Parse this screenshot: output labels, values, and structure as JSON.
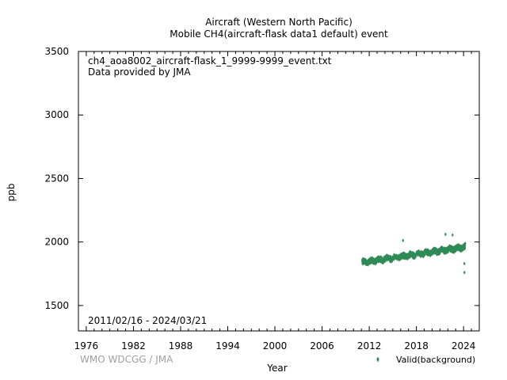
{
  "chart_data": {
    "type": "scatter",
    "title_line1": "Aircraft (Western North Pacific)",
    "title_line2": "Mobile    CH4(aircraft-flask data1 default) event",
    "annotation_file": "ch4_aoa8002_aircraft-flask_1_9999-9999_event.txt",
    "annotation_provider": "Data provided by JMA",
    "date_range": "2011/02/16 - 2024/03/21",
    "xlabel": "Year",
    "ylabel": "ppb",
    "xlim": [
      1975,
      2026
    ],
    "ylim": [
      1300,
      3500
    ],
    "x_ticks": [
      "1976",
      "1982",
      "1988",
      "1994",
      "2000",
      "2006",
      "2012",
      "2018",
      "2024"
    ],
    "y_ticks": [
      "1500",
      "2000",
      "2500",
      "3000",
      "3500"
    ],
    "grid": false,
    "legend_position": "bottom-right",
    "series": [
      {
        "name": "Valid(background)",
        "color": "#2e8b57",
        "x_range": [
          2011.13,
          2024.22
        ],
        "baseline_start": 1840,
        "baseline_end": 1960,
        "spread": 40,
        "outliers": [
          [
            2016.3,
            2012
          ],
          [
            2021.7,
            2060
          ],
          [
            2022.6,
            2055
          ],
          [
            2024.1,
            1760
          ],
          [
            2024.1,
            1830
          ]
        ]
      }
    ]
  },
  "footer": {
    "credit": "WMO WDCGG / JMA"
  }
}
